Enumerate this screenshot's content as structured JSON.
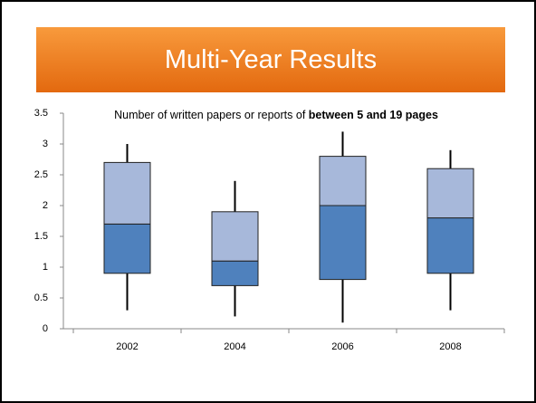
{
  "chart_data": {
    "type": "box",
    "title": "Multi-Year Results",
    "subtitle_parts": [
      "Number of written papers or reports of ",
      "between 5 and 19 pages"
    ],
    "categories": [
      "2002",
      "2004",
      "2006",
      "2008"
    ],
    "min": [
      0.3,
      0.2,
      0.1,
      0.3
    ],
    "q1": [
      0.9,
      0.7,
      0.8,
      0.9
    ],
    "median": [
      1.7,
      1.1,
      2.0,
      1.8
    ],
    "q3": [
      2.7,
      1.9,
      2.8,
      2.6
    ],
    "max": [
      3.0,
      2.4,
      3.2,
      2.9
    ],
    "colors": {
      "lower": "#4f81bd",
      "upper": "#a7b8da",
      "whisker": "#000000"
    },
    "ylim": [
      0,
      3.5
    ],
    "yticks": [
      0,
      0.5,
      1,
      1.5,
      2,
      2.5,
      3,
      3.5
    ],
    "grid": false
  }
}
